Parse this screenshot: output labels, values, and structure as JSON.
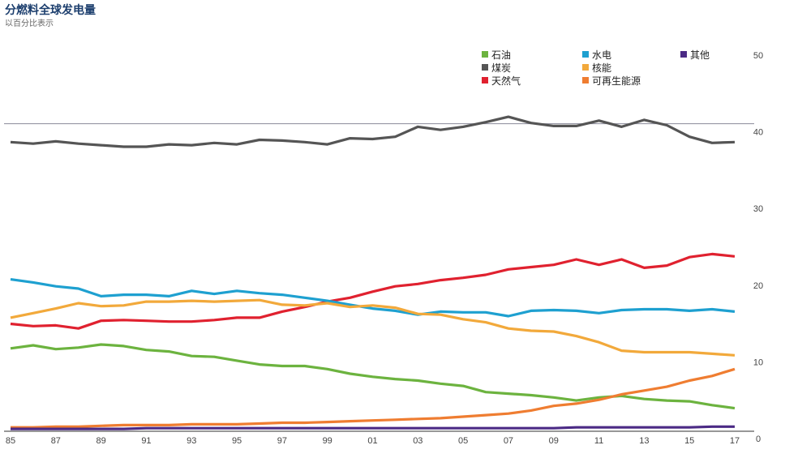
{
  "header": {
    "title": "分燃料全球发电量",
    "subtitle": "以百分比表示"
  },
  "chart_data": {
    "type": "line",
    "title": "分燃料全球发电量",
    "subtitle": "以百分比表示",
    "xlabel": "",
    "ylabel": "",
    "ylim": [
      0,
      50
    ],
    "yticks": [
      "0",
      "10",
      "20",
      "30",
      "40",
      "50"
    ],
    "xticks": [
      "85",
      "87",
      "89",
      "91",
      "93",
      "95",
      "97",
      "99",
      "01",
      "03",
      "05",
      "07",
      "09",
      "11",
      "13",
      "15",
      "17"
    ],
    "grid": "single reference line at 40",
    "legend": "top-right",
    "x": [
      1985,
      1986,
      1987,
      1988,
      1989,
      1990,
      1991,
      1992,
      1993,
      1994,
      1995,
      1996,
      1997,
      1998,
      1999,
      2000,
      2001,
      2002,
      2003,
      2004,
      2005,
      2006,
      2007,
      2008,
      2009,
      2010,
      2011,
      2012,
      2013,
      2014,
      2015,
      2016,
      2017
    ],
    "series": [
      {
        "name": "石油",
        "color": "#6cb33f",
        "values": [
          10.7,
          11.1,
          10.6,
          10.8,
          11.2,
          11.0,
          10.5,
          10.3,
          9.7,
          9.6,
          9.1,
          8.6,
          8.4,
          8.4,
          8.0,
          7.4,
          7.0,
          6.7,
          6.5,
          6.1,
          5.8,
          5.0,
          4.8,
          4.6,
          4.3,
          3.9,
          4.3,
          4.5,
          4.1,
          3.9,
          3.8,
          3.3,
          2.9
        ]
      },
      {
        "name": "煤炭",
        "color": "#555555",
        "values": [
          37.6,
          37.4,
          37.7,
          37.4,
          37.2,
          37.0,
          37.0,
          37.3,
          37.2,
          37.5,
          37.3,
          37.9,
          37.8,
          37.6,
          37.3,
          38.1,
          38.0,
          38.3,
          39.6,
          39.2,
          39.6,
          40.2,
          40.9,
          40.1,
          39.7,
          39.7,
          40.4,
          39.6,
          40.5,
          39.8,
          38.3,
          37.5,
          37.6
        ]
      },
      {
        "name": "天然气",
        "color": "#e0212f",
        "values": [
          13.9,
          13.6,
          13.7,
          13.3,
          14.3,
          14.4,
          14.3,
          14.2,
          14.2,
          14.4,
          14.7,
          14.7,
          15.5,
          16.1,
          16.8,
          17.3,
          18.1,
          18.8,
          19.1,
          19.6,
          19.9,
          20.3,
          21.0,
          21.3,
          21.6,
          22.3,
          21.6,
          22.3,
          21.2,
          21.5,
          22.6,
          23.0,
          22.7
        ]
      },
      {
        "name": "水电",
        "color": "#1ea0d0",
        "values": [
          19.7,
          19.3,
          18.8,
          18.5,
          17.5,
          17.7,
          17.7,
          17.5,
          18.2,
          17.8,
          18.2,
          17.9,
          17.7,
          17.3,
          16.9,
          16.4,
          15.9,
          15.6,
          15.1,
          15.5,
          15.4,
          15.4,
          14.9,
          15.6,
          15.7,
          15.6,
          15.3,
          15.7,
          15.8,
          15.8,
          15.6,
          15.8,
          15.5
        ]
      },
      {
        "name": "核能",
        "color": "#f2a93b",
        "values": [
          14.7,
          15.3,
          15.9,
          16.6,
          16.2,
          16.3,
          16.8,
          16.8,
          16.9,
          16.8,
          16.9,
          17.0,
          16.4,
          16.3,
          16.6,
          16.1,
          16.3,
          16.0,
          15.2,
          15.1,
          14.5,
          14.1,
          13.3,
          13.0,
          12.9,
          12.3,
          11.5,
          10.4,
          10.2,
          10.2,
          10.2,
          10.0,
          9.8
        ]
      },
      {
        "name": "可再生能源",
        "color": "#ef7d31",
        "values": [
          0.4,
          0.4,
          0.5,
          0.5,
          0.6,
          0.7,
          0.7,
          0.7,
          0.8,
          0.8,
          0.8,
          0.9,
          1.0,
          1.0,
          1.1,
          1.2,
          1.3,
          1.4,
          1.5,
          1.6,
          1.8,
          2.0,
          2.2,
          2.6,
          3.2,
          3.5,
          4.0,
          4.7,
          5.2,
          5.7,
          6.5,
          7.1,
          8.0
        ]
      },
      {
        "name": "其他",
        "color": "#4b2a85",
        "values": [
          0.2,
          0.2,
          0.2,
          0.2,
          0.2,
          0.2,
          0.3,
          0.3,
          0.3,
          0.3,
          0.3,
          0.3,
          0.3,
          0.3,
          0.3,
          0.3,
          0.3,
          0.3,
          0.3,
          0.3,
          0.3,
          0.3,
          0.3,
          0.3,
          0.3,
          0.4,
          0.4,
          0.4,
          0.4,
          0.4,
          0.4,
          0.5,
          0.5
        ]
      }
    ]
  }
}
